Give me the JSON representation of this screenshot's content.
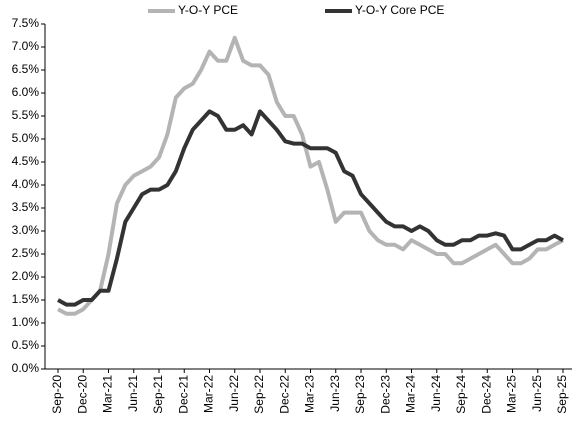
{
  "chart_data": {
    "type": "line",
    "categories": [
      "Sep-20",
      null,
      null,
      "Dec-20",
      null,
      null,
      "Mar-21",
      null,
      null,
      "Jun-21",
      null,
      null,
      "Sep-21",
      null,
      null,
      "Dec-21",
      null,
      null,
      "Mar-22",
      null,
      null,
      "Jun-22",
      null,
      null,
      "Sep-22",
      null,
      null,
      "Dec-22",
      null,
      null,
      "Mar-23",
      null,
      null,
      "Jun-23",
      null,
      null,
      "Sep-23",
      null,
      null,
      "Dec-23",
      null,
      null,
      "Mar-24",
      null,
      null,
      "Jun-24",
      null,
      null,
      "Sep-24",
      null,
      null,
      "Dec-24",
      null,
      null,
      "Mar-25",
      null,
      null,
      "Jun-25",
      null,
      null,
      "Sep-25"
    ],
    "series": [
      {
        "name": "Y-O-Y PCE",
        "color": "#b4b4b4",
        "values": [
          1.3,
          1.2,
          1.2,
          1.3,
          1.5,
          1.7,
          2.5,
          3.6,
          4.0,
          4.2,
          4.3,
          4.4,
          4.6,
          5.1,
          5.9,
          6.1,
          6.2,
          6.5,
          6.9,
          6.7,
          6.7,
          7.2,
          6.7,
          6.6,
          6.6,
          6.4,
          5.8,
          5.5,
          5.5,
          5.1,
          4.4,
          4.5,
          3.9,
          3.2,
          3.4,
          3.4,
          3.4,
          3.0,
          2.8,
          2.7,
          2.7,
          2.6,
          2.8,
          2.7,
          2.6,
          2.5,
          2.5,
          2.3,
          2.3,
          2.4,
          2.5,
          2.6,
          2.7,
          2.5,
          2.3,
          2.3,
          2.4,
          2.6,
          2.6,
          2.7,
          2.8
        ]
      },
      {
        "name": "Y-O-Y Core PCE",
        "color": "#333333",
        "values": [
          1.5,
          1.4,
          1.4,
          1.5,
          1.5,
          1.7,
          1.7,
          2.4,
          3.2,
          3.5,
          3.8,
          3.9,
          3.9,
          4.0,
          4.3,
          4.8,
          5.2,
          5.4,
          5.6,
          5.5,
          5.2,
          5.2,
          5.3,
          5.1,
          5.6,
          5.4,
          5.2,
          4.95,
          4.9,
          4.9,
          4.8,
          4.8,
          4.8,
          4.7,
          4.3,
          4.2,
          3.8,
          3.6,
          3.4,
          3.2,
          3.1,
          3.1,
          3.0,
          3.1,
          3.0,
          2.8,
          2.7,
          2.7,
          2.8,
          2.8,
          2.9,
          2.9,
          2.95,
          2.9,
          2.6,
          2.6,
          2.7,
          2.8,
          2.8,
          2.9,
          2.8
        ]
      }
    ],
    "ylim": [
      0,
      7.5
    ],
    "yticks": [
      {
        "value": 0,
        "label": "0.0%"
      },
      {
        "value": 0.5,
        "label": "0.5%"
      },
      {
        "value": 1,
        "label": "1.0%"
      },
      {
        "value": 1.5,
        "label": "1.5%"
      },
      {
        "value": 2,
        "label": "2.0%"
      },
      {
        "value": 2.5,
        "label": "2.5%"
      },
      {
        "value": 3,
        "label": "3.0%"
      },
      {
        "value": 3.5,
        "label": "3.5%"
      },
      {
        "value": 4,
        "label": "4.0%"
      },
      {
        "value": 4.5,
        "label": "4.5%"
      },
      {
        "value": 5,
        "label": "5.0%"
      },
      {
        "value": 5.5,
        "label": "5.5%"
      },
      {
        "value": 6,
        "label": "6.0%"
      },
      {
        "value": 6.5,
        "label": "6.5%"
      },
      {
        "value": 7,
        "label": "7.0%"
      },
      {
        "value": 7.5,
        "label": "7.5%"
      }
    ],
    "grid": false,
    "legend": "top"
  }
}
